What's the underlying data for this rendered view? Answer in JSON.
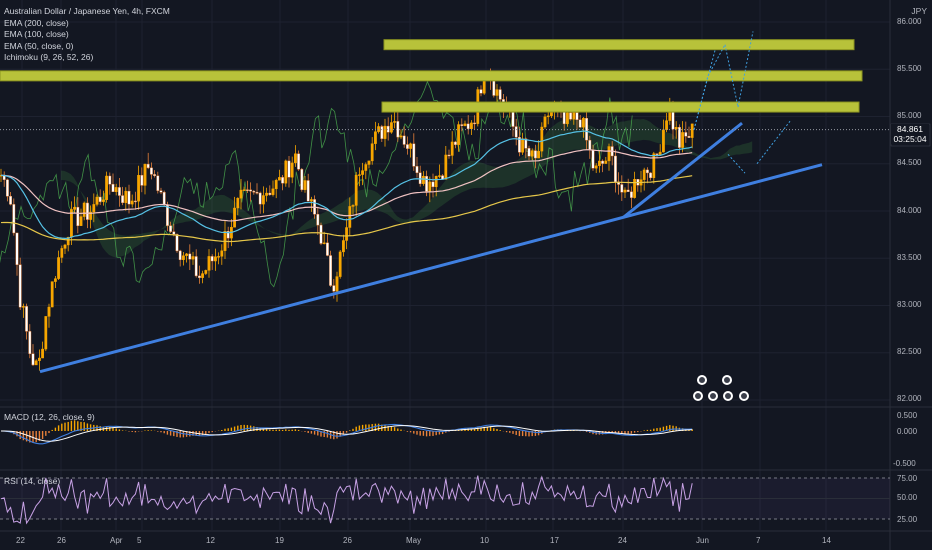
{
  "header": {
    "title": "Australian Dollar / Japanese Yen, 4h, FXCM",
    "currency": "JPY"
  },
  "indicators": [
    "EMA (200, close)",
    "EMA (100, close)",
    "EMA (50, close, 0)",
    "Ichimoku (9, 26, 52, 26)"
  ],
  "price_axis": {
    "ticks": [
      "86.000",
      "85.500",
      "85.000",
      "84.500",
      "84.000",
      "83.500",
      "83.000",
      "82.500",
      "82.000"
    ],
    "last_price": "84.861",
    "countdown": "03:25:04"
  },
  "macd": {
    "label": "MACD (12, 26, close, 9)",
    "ticks": [
      "0.500",
      "0.000",
      "-0.500"
    ]
  },
  "rsi": {
    "label": "RSI (14, close)",
    "ticks": [
      "75.00",
      "50.00",
      "25.00"
    ]
  },
  "time_axis": {
    "ticks": [
      "22",
      "26",
      "Apr",
      "5",
      "12",
      "19",
      "26",
      "May",
      "10",
      "17",
      "24",
      "Jun",
      "7",
      "14"
    ]
  },
  "colors": {
    "background": "#131722",
    "up": "#f7a600",
    "down": "#f7a600",
    "resistance": "#b8c23a",
    "trendline": "#3f7fe0",
    "ema200": "#e6c74a",
    "ema100": "#f0c2c2",
    "ema50": "#56c2e6",
    "macd": "#3f7fe0",
    "signal": "#ffffff",
    "rsi": "#c8a2e6"
  },
  "chart_data": {
    "type": "line",
    "symbol": "AUDJPY",
    "ylim": [
      82.0,
      86.0
    ],
    "x": [
      "Mar 22",
      "Mar 26",
      "Apr 1",
      "Apr 5",
      "Apr 12",
      "Apr 19",
      "Apr 26",
      "May 3",
      "May 10",
      "May 17",
      "May 24",
      "May 31"
    ],
    "series": [
      {
        "values": [
          82.3,
          83.6,
          84.2,
          83.8,
          83.6,
          83.4,
          83.2,
          84.6,
          85.6,
          84.8,
          84.1,
          84.86
        ]
      }
    ],
    "resistance_levels": [
      85.76,
      85.43,
      85.1
    ],
    "support_trend": [
      [
        82.3,
        84.49
      ]
    ],
    "last": 84.861
  }
}
